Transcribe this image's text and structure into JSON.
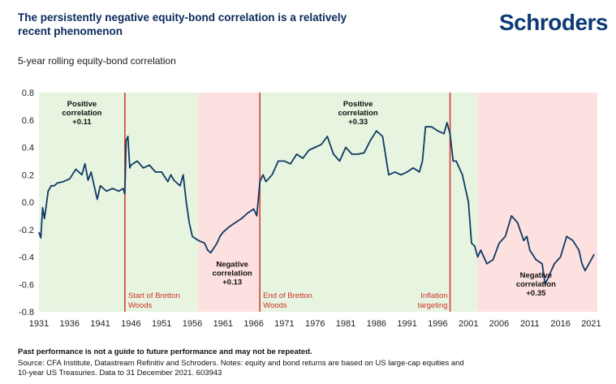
{
  "header": {
    "title": "The persistently negative equity-bond correlation is a relatively recent phenomenon",
    "logo": "Schroders",
    "subtitle": "5-year rolling equity-bond correlation"
  },
  "chart_data": {
    "type": "line",
    "title": "The persistently negative equity-bond correlation is a relatively recent phenomenon",
    "subtitle": "5-year rolling equity-bond correlation",
    "xlabel": "",
    "ylabel": "",
    "xlim": [
      1931,
      2022
    ],
    "ylim": [
      -0.8,
      0.8
    ],
    "x_ticks": [
      "1931",
      "1936",
      "1941",
      "1946",
      "1951",
      "1956",
      "1961",
      "1966",
      "1971",
      "1976",
      "1981",
      "1986",
      "1991",
      "1996",
      "2001",
      "2006",
      "2011",
      "2016",
      "2021"
    ],
    "y_ticks": [
      "0.8",
      "0.6",
      "0.4",
      "0.2",
      "0.0",
      "-0.2",
      "-0.4",
      "-0.6",
      "-0.8"
    ],
    "grid": false,
    "colors": {
      "line": "#103a63",
      "positive_band": "#e6f4e0",
      "negative_band": "#fde0e0",
      "divider": "#d2332a"
    },
    "regimes": [
      {
        "start": 1931,
        "end": 1945,
        "type": "positive",
        "label_lines": [
          "Positive",
          "correlation",
          "+0.11"
        ],
        "label_x": 1938.0,
        "label_y": 0.7
      },
      {
        "start": 1945,
        "end": 1957,
        "type": "positive"
      },
      {
        "start": 1957,
        "end": 1967,
        "type": "negative",
        "label_lines": [
          "Negative",
          "correlation",
          "+0.13"
        ],
        "label_x": 1962.5,
        "label_y": -0.47
      },
      {
        "start": 1967,
        "end": 1998,
        "type": "positive",
        "label_lines": [
          "Positive",
          "correlation",
          "+0.33"
        ],
        "label_x": 1983.0,
        "label_y": 0.7
      },
      {
        "start": 1998,
        "end": 2002.5,
        "type": "positive"
      },
      {
        "start": 2002.5,
        "end": 2022,
        "type": "negative",
        "label_lines": [
          "Negative",
          "correlation",
          "+0.35"
        ],
        "label_x": 2012.0,
        "label_y": -0.55
      }
    ],
    "event_lines": [
      {
        "x": 1945,
        "label_lines": [
          "Start of Bretton",
          "Woods"
        ],
        "align": "start"
      },
      {
        "x": 1967,
        "label_lines": [
          "End of Bretton",
          "Woods"
        ],
        "align": "start"
      },
      {
        "x": 1998,
        "label_lines": [
          "Inflation",
          "targeting"
        ],
        "align": "end"
      }
    ],
    "series": [
      {
        "x": [
          1931,
          1931.3,
          1931.6,
          1931.9,
          1932.2,
          1932.5,
          1933,
          1933.5,
          1934,
          1935,
          1936,
          1937,
          1938,
          1938.5,
          1939,
          1939.5,
          1940,
          1940.5,
          1941,
          1942,
          1943,
          1944,
          1944.7,
          1945,
          1945.2,
          1945.5,
          1945.8,
          1946,
          1947,
          1948,
          1949,
          1950,
          1951,
          1952,
          1952.5,
          1953,
          1954,
          1954.5,
          1955,
          1955.5,
          1956,
          1957,
          1958,
          1958.5,
          1959,
          1960,
          1960.5,
          1961,
          1962,
          1963,
          1964,
          1965,
          1966,
          1966.5,
          1967,
          1967.5,
          1968,
          1969,
          1970,
          1971,
          1972,
          1973,
          1974,
          1975,
          1976,
          1977,
          1978,
          1979,
          1980,
          1981,
          1982,
          1983,
          1984,
          1985,
          1986,
          1987,
          1988,
          1989,
          1990,
          1991,
          1992,
          1993,
          1993.5,
          1994,
          1995,
          1996,
          1997,
          1997.5,
          1998,
          1998.5,
          1999,
          2000,
          2001,
          2001.5,
          2002,
          2002.5,
          2003,
          2004,
          2005,
          2006,
          2007,
          2008,
          2009,
          2010,
          2010.5,
          2011,
          2012,
          2013,
          2013.5,
          2014,
          2015,
          2016,
          2017,
          2018,
          2019,
          2019.5,
          2020,
          2021,
          2021.5
        ],
        "values": [
          -0.22,
          -0.26,
          -0.04,
          -0.12,
          -0.02,
          0.08,
          0.12,
          0.12,
          0.14,
          0.15,
          0.17,
          0.24,
          0.2,
          0.28,
          0.16,
          0.22,
          0.12,
          0.02,
          0.12,
          0.08,
          0.1,
          0.08,
          0.1,
          0.06,
          0.45,
          0.48,
          0.25,
          0.27,
          0.3,
          0.25,
          0.27,
          0.22,
          0.22,
          0.15,
          0.2,
          0.16,
          0.12,
          0.2,
          0.0,
          -0.15,
          -0.25,
          -0.28,
          -0.3,
          -0.35,
          -0.37,
          -0.3,
          -0.25,
          -0.22,
          -0.18,
          -0.15,
          -0.12,
          -0.08,
          -0.05,
          -0.1,
          0.15,
          0.2,
          0.15,
          0.2,
          0.3,
          0.3,
          0.28,
          0.35,
          0.32,
          0.38,
          0.4,
          0.42,
          0.48,
          0.35,
          0.3,
          0.4,
          0.35,
          0.35,
          0.36,
          0.45,
          0.52,
          0.48,
          0.2,
          0.22,
          0.2,
          0.22,
          0.25,
          0.22,
          0.3,
          0.55,
          0.55,
          0.52,
          0.5,
          0.58,
          0.5,
          0.3,
          0.3,
          0.2,
          0.0,
          -0.3,
          -0.32,
          -0.4,
          -0.35,
          -0.45,
          -0.42,
          -0.3,
          -0.25,
          -0.1,
          -0.15,
          -0.28,
          -0.25,
          -0.35,
          -0.42,
          -0.45,
          -0.6,
          -0.55,
          -0.45,
          -0.4,
          -0.25,
          -0.28,
          -0.35,
          -0.45,
          -0.5,
          -0.42,
          -0.38
        ]
      }
    ]
  },
  "footer": {
    "disclaimer": "Past performance is not a guide to future performance and may not be repeated.",
    "source_line1": "Source: CFA Institute, Datastream Refinitiv and Schroders. Notes: equity and bond returns are based on US large-cap equities and",
    "source_line2": "10-year US Treasuries. Data to 31 December 2021. 603943"
  }
}
